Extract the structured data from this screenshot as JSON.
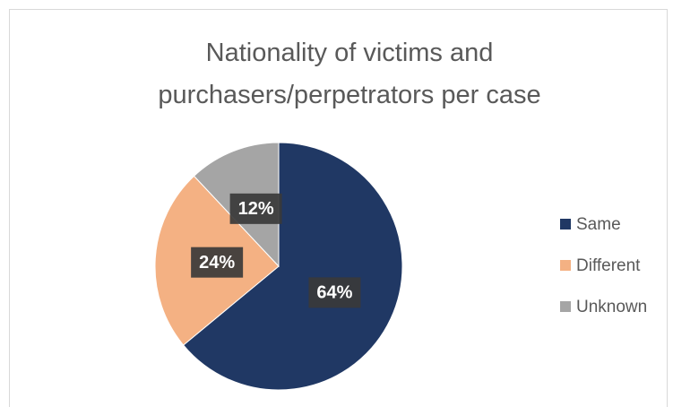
{
  "chart_data": {
    "type": "pie",
    "title": "Nationality of victims and purchasers/perpetrators per case",
    "categories": [
      "Same",
      "Different",
      "Unknown"
    ],
    "values": [
      64,
      24,
      12
    ],
    "value_labels": [
      "64%",
      "24%",
      "12%"
    ],
    "colors": [
      "#203864",
      "#f4b183",
      "#a5a5a5"
    ],
    "legend": "right"
  }
}
